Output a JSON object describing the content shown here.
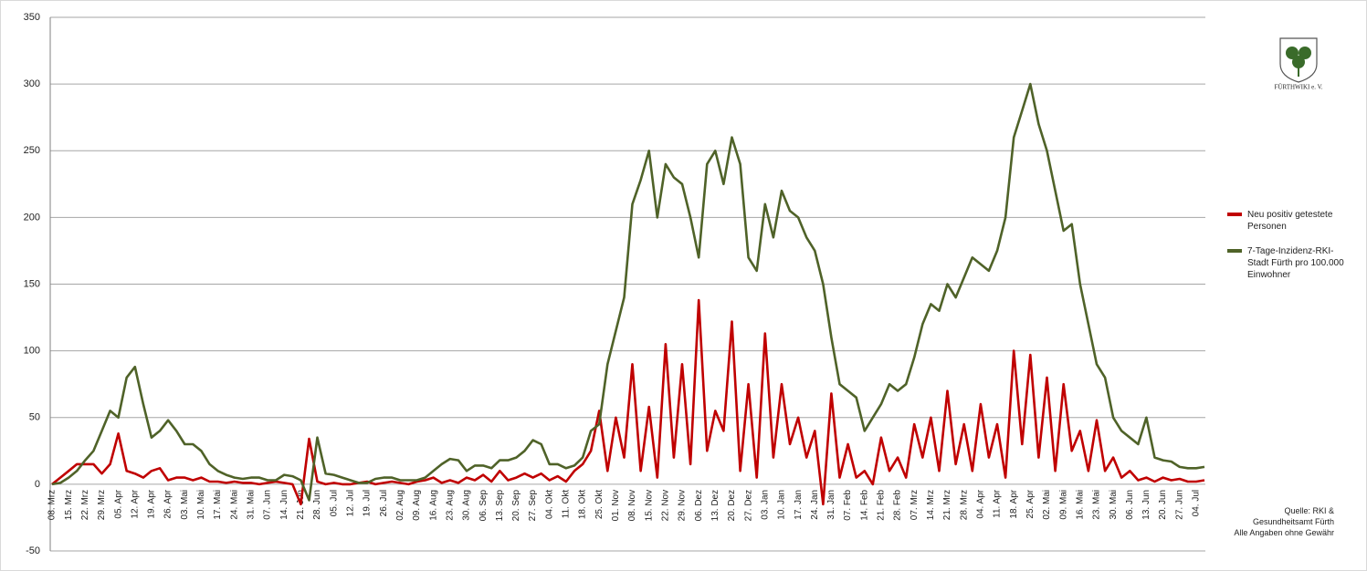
{
  "chart_data": {
    "type": "line",
    "logo_text": "FÜRTHWIKI e. V.",
    "source": [
      "Quelle: RKI &",
      "Gesundheitsamt Fürth",
      "Alle Angaben ohne Gewähr"
    ],
    "categories": [
      "08. Mrz",
      null,
      "15. Mrz",
      null,
      "22. Mrz",
      null,
      "29. Mrz",
      null,
      "05. Apr",
      null,
      "12. Apr",
      null,
      "19. Apr",
      null,
      "26. Apr",
      null,
      "03. Mai",
      null,
      "10. Mai",
      null,
      "17. Mai",
      null,
      "24. Mai",
      null,
      "31. Mai",
      null,
      "07. Jun",
      null,
      "14. Jun",
      null,
      "21. Jun",
      null,
      "28. Jun",
      null,
      "05. Jul",
      null,
      "12. Jul",
      null,
      "19. Jul",
      null,
      "26. Jul",
      null,
      "02. Aug",
      null,
      "09. Aug",
      null,
      "16. Aug",
      null,
      "23. Aug",
      null,
      "30. Aug",
      null,
      "06. Sep",
      null,
      "13. Sep",
      null,
      "20. Sep",
      null,
      "27. Sep",
      null,
      "04. Okt",
      null,
      "11. Okt",
      null,
      "18. Okt",
      null,
      "25. Okt",
      null,
      "01. Nov",
      null,
      "08. Nov",
      null,
      "15. Nov",
      null,
      "22. Nov",
      null,
      "29. Nov",
      null,
      "06. Dez",
      null,
      "13. Dez",
      null,
      "20. Dez",
      null,
      "27. Dez",
      null,
      "03. Jan",
      null,
      "10. Jan",
      null,
      "17. Jan",
      null,
      "24. Jan",
      null,
      "31. Jan",
      null,
      "07. Feb",
      null,
      "14. Feb",
      null,
      "21. Feb",
      null,
      "28. Feb",
      null,
      "07. Mrz",
      null,
      "14. Mrz",
      null,
      "21. Mrz",
      null,
      "28. Mrz",
      null,
      "04. Apr",
      null,
      "11. Apr",
      null,
      "18. Apr",
      null,
      "25. Apr",
      null,
      "02. Mai",
      null,
      "09. Mai",
      null,
      "16. Mai",
      null,
      "23. Mai",
      null,
      "30. Mai",
      null,
      "06. Jun",
      null,
      "13. Jun",
      null,
      "20. Jun",
      null,
      "27. Jun",
      null,
      "04. Jul",
      null
    ],
    "series": [
      {
        "name": "Neu positiv getestete Personen",
        "color": "#c00000",
        "values": [
          0,
          5,
          10,
          15,
          15,
          15,
          8,
          15,
          38,
          10,
          8,
          5,
          10,
          12,
          3,
          5,
          5,
          3,
          5,
          2,
          2,
          1,
          2,
          1,
          1,
          0,
          1,
          2,
          1,
          0,
          -15,
          34,
          2,
          0,
          1,
          0,
          0,
          1,
          2,
          0,
          1,
          2,
          1,
          0,
          2,
          3,
          5,
          1,
          3,
          1,
          5,
          3,
          7,
          2,
          10,
          3,
          5,
          8,
          5,
          8,
          3,
          6,
          2,
          10,
          15,
          25,
          55,
          10,
          50,
          20,
          90,
          10,
          58,
          5,
          105,
          20,
          90,
          15,
          138,
          25,
          55,
          40,
          122,
          10,
          75,
          5,
          113,
          20,
          75,
          30,
          50,
          20,
          40,
          -15,
          68,
          5,
          30,
          5,
          10,
          0,
          35,
          10,
          20,
          5,
          45,
          20,
          50,
          10,
          70,
          15,
          45,
          10,
          60,
          20,
          45,
          5,
          100,
          30,
          97,
          20,
          80,
          10,
          75,
          25,
          40,
          10,
          48,
          10,
          20,
          5,
          10,
          3,
          5,
          2,
          5,
          3,
          4,
          2,
          2,
          3
        ]
      },
      {
        "name": "7-Tage-Inzidenz-RKI-Stadt Fürth pro 100.000 Einwohner",
        "color": "#4f6228",
        "values": [
          0,
          1,
          5,
          10,
          18,
          25,
          40,
          55,
          50,
          80,
          88,
          60,
          35,
          40,
          48,
          40,
          30,
          30,
          25,
          15,
          10,
          7,
          5,
          4,
          5,
          5,
          3,
          3,
          7,
          6,
          3,
          -12,
          35,
          8,
          7,
          5,
          3,
          1,
          1,
          4,
          5,
          5,
          3,
          3,
          3,
          5,
          10,
          15,
          19,
          18,
          10,
          14,
          14,
          12,
          18,
          18,
          20,
          25,
          33,
          30,
          15,
          15,
          12,
          14,
          20,
          40,
          45,
          90,
          115,
          140,
          210,
          228,
          250,
          200,
          240,
          230,
          225,
          200,
          170,
          240,
          250,
          225,
          260,
          240,
          170,
          160,
          210,
          185,
          220,
          205,
          200,
          185,
          175,
          150,
          110,
          75,
          70,
          65,
          40,
          50,
          60,
          75,
          70,
          75,
          95,
          120,
          135,
          130,
          150,
          140,
          155,
          170,
          165,
          160,
          175,
          200,
          260,
          280,
          300,
          270,
          250,
          220,
          190,
          195,
          150,
          120,
          90,
          80,
          50,
          40,
          35,
          30,
          50,
          20,
          18,
          17,
          13,
          12,
          12,
          13
        ]
      }
    ],
    "ylim": [
      -50,
      350
    ],
    "yticks": [
      -50,
      0,
      50,
      100,
      150,
      200,
      250,
      300,
      350
    ],
    "grid": true
  }
}
